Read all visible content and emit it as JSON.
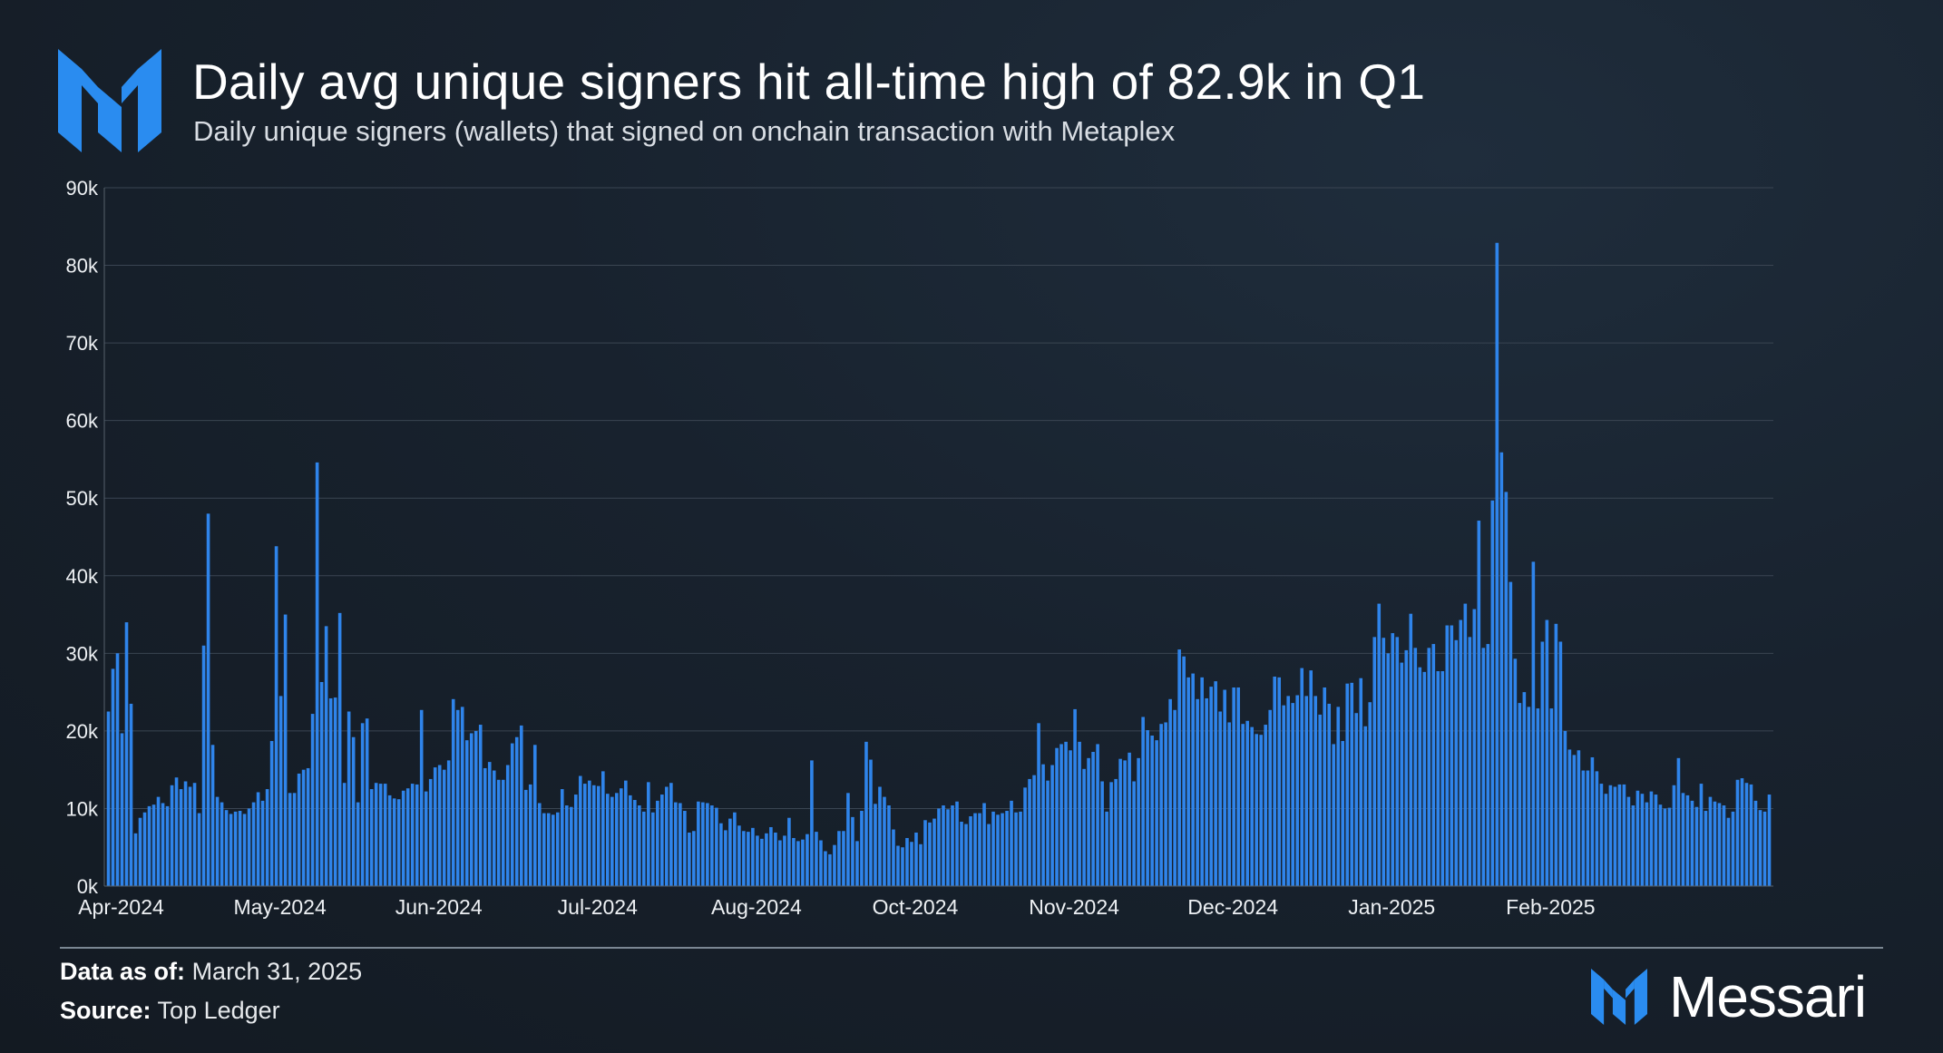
{
  "header": {
    "title": "Daily avg unique signers hit all-time high of 82.9k in Q1",
    "subtitle": "Daily unique signers (wallets) that signed on onchain transaction with Metaplex"
  },
  "footer": {
    "data_as_of_label": "Data as of:",
    "data_as_of_value": "March 31, 2025",
    "source_label": "Source:",
    "source_value": "Top Ledger",
    "brand": "Messari"
  },
  "colors": {
    "bar": "#2f84ea",
    "grid": "#3a4552",
    "axis_text": "#eef1f4",
    "accent": "#2a8cf0"
  },
  "chart_data": {
    "type": "bar",
    "title": "Daily avg unique signers hit all-time high of 82.9k in Q1",
    "xlabel": "",
    "ylabel": "",
    "ylim": [
      0,
      90000
    ],
    "grid": true,
    "y_ticks": [
      {
        "value": 0,
        "label": "0k"
      },
      {
        "value": 10000,
        "label": "10k"
      },
      {
        "value": 20000,
        "label": "20k"
      },
      {
        "value": 30000,
        "label": "30k"
      },
      {
        "value": 40000,
        "label": "40k"
      },
      {
        "value": 50000,
        "label": "50k"
      },
      {
        "value": 60000,
        "label": "60k"
      },
      {
        "value": 70000,
        "label": "70k"
      },
      {
        "value": 80000,
        "label": "80k"
      },
      {
        "value": 90000,
        "label": "90k"
      }
    ],
    "x_ticks": [
      {
        "index": 0,
        "label": "Apr-2024"
      },
      {
        "index": 35,
        "label": "May-2024"
      },
      {
        "index": 70,
        "label": "Jun-2024"
      },
      {
        "index": 105,
        "label": "Jul-2024"
      },
      {
        "index": 140,
        "label": "Aug-2024"
      },
      {
        "index": 175,
        "label": "Oct-2024"
      },
      {
        "index": 210,
        "label": "Nov-2024"
      },
      {
        "index": 245,
        "label": "Dec-2024"
      },
      {
        "index": 280,
        "label": "Jan-2025"
      },
      {
        "index": 315,
        "label": "Feb-2025"
      }
    ],
    "values": [
      22500,
      28000,
      30000,
      19700,
      34000,
      23500,
      6800,
      8800,
      9500,
      10300,
      10500,
      11500,
      10700,
      10300,
      13000,
      14000,
      12500,
      13500,
      12800,
      13300,
      9400,
      31000,
      48000,
      18200,
      11500,
      10800,
      9800,
      9300,
      9600,
      9700,
      9300,
      10000,
      10800,
      12100,
      11000,
      12500,
      18700,
      43800,
      24500,
      35000,
      12000,
      12000,
      14500,
      15000,
      15200,
      22200,
      54600,
      26300,
      33500,
      24200,
      24300,
      35200,
      13300,
      22500,
      19200,
      10800,
      21000,
      21600,
      12500,
      13300,
      13200,
      13200,
      11700,
      11300,
      11200,
      12300,
      12600,
      13200,
      13100,
      22700,
      12200,
      13800,
      15300,
      15600,
      15000,
      16200,
      24100,
      22700,
      23100,
      18800,
      19700,
      20000,
      20800,
      15200,
      16000,
      14900,
      13700,
      13700,
      15600,
      18400,
      19200,
      20700,
      12400,
      13100,
      18200,
      10700,
      9400,
      9400,
      9200,
      9500,
      12500,
      10400,
      10200,
      11800,
      14200,
      13200,
      13600,
      13000,
      12900,
      14800,
      11900,
      11500,
      12000,
      12600,
      13600,
      11700,
      11100,
      10400,
      9600,
      13400,
      9500,
      11000,
      11800,
      12800,
      13300,
      10800,
      10700,
      9700,
      6900,
      7100,
      10900,
      10800,
      10700,
      10400,
      10100,
      8100,
      7200,
      8700,
      9500,
      7800,
      7100,
      7000,
      7500,
      6500,
      6100,
      6800,
      7600,
      6900,
      5900,
      6500,
      8800,
      6200,
      5800,
      6000,
      6700,
      16200,
      7000,
      5900,
      4500,
      4100,
      5300,
      7100,
      7100,
      12000,
      8900,
      5800,
      9700,
      18600,
      16300,
      10600,
      12800,
      11500,
      10400,
      7300,
      5200,
      5000,
      6200,
      5700,
      6900,
      5400,
      8500,
      8200,
      8700,
      10000,
      10400,
      9900,
      10400,
      10900,
      8300,
      8000,
      9000,
      9400,
      9400,
      10700,
      8000,
      9600,
      9200,
      9400,
      9700,
      11000,
      9500,
      9600,
      12700,
      13800,
      14300,
      21000,
      15700,
      13600,
      15600,
      17800,
      18300,
      18600,
      17500,
      22800,
      18600,
      15100,
      16500,
      17300,
      18300,
      13500,
      9600,
      13400,
      13800,
      16400,
      16200,
      17200,
      13500,
      16500,
      21800,
      20100,
      19400,
      18800,
      20900,
      21100,
      24100,
      22700,
      30500,
      29600,
      26900,
      27400,
      24100,
      26900,
      24200,
      25700,
      26400,
      22500,
      25300,
      21100,
      25600,
      25600,
      20900,
      21300,
      20500,
      19600,
      19500,
      20800,
      22700,
      27000,
      26900,
      23300,
      24500,
      23600,
      24600,
      28100,
      24500,
      27800,
      24500,
      22100,
      25600,
      23500,
      18300,
      23100,
      18700,
      26100,
      26200,
      22300,
      26800,
      20600,
      23700,
      32100,
      36400,
      32000,
      30000,
      32600,
      32100,
      28800,
      30400,
      35100,
      30700,
      28200,
      27600,
      30700,
      31200,
      27700,
      27700,
      33600,
      33600,
      31700,
      34300,
      36400,
      32100,
      35700,
      47100,
      30700,
      31200,
      49700,
      82900,
      55900,
      50800,
      39200,
      29300,
      23600,
      25000,
      23100,
      41800,
      22900,
      31500,
      34300,
      22900,
      33800,
      31500,
      20000,
      17600,
      16900,
      17500,
      14900,
      14900,
      16600,
      14800,
      13200,
      11900,
      13000,
      12800,
      13100,
      13100,
      11500,
      10400,
      12300,
      11900,
      10800,
      12200,
      11800,
      10500,
      10000,
      10100,
      13000,
      16500,
      12000,
      11700,
      11000,
      10200,
      13200,
      9700,
      11500,
      10900,
      10700,
      10400,
      8800,
      9600,
      13700,
      13900,
      13300,
      13100,
      11000,
      9800,
      9600,
      11800
    ]
  }
}
